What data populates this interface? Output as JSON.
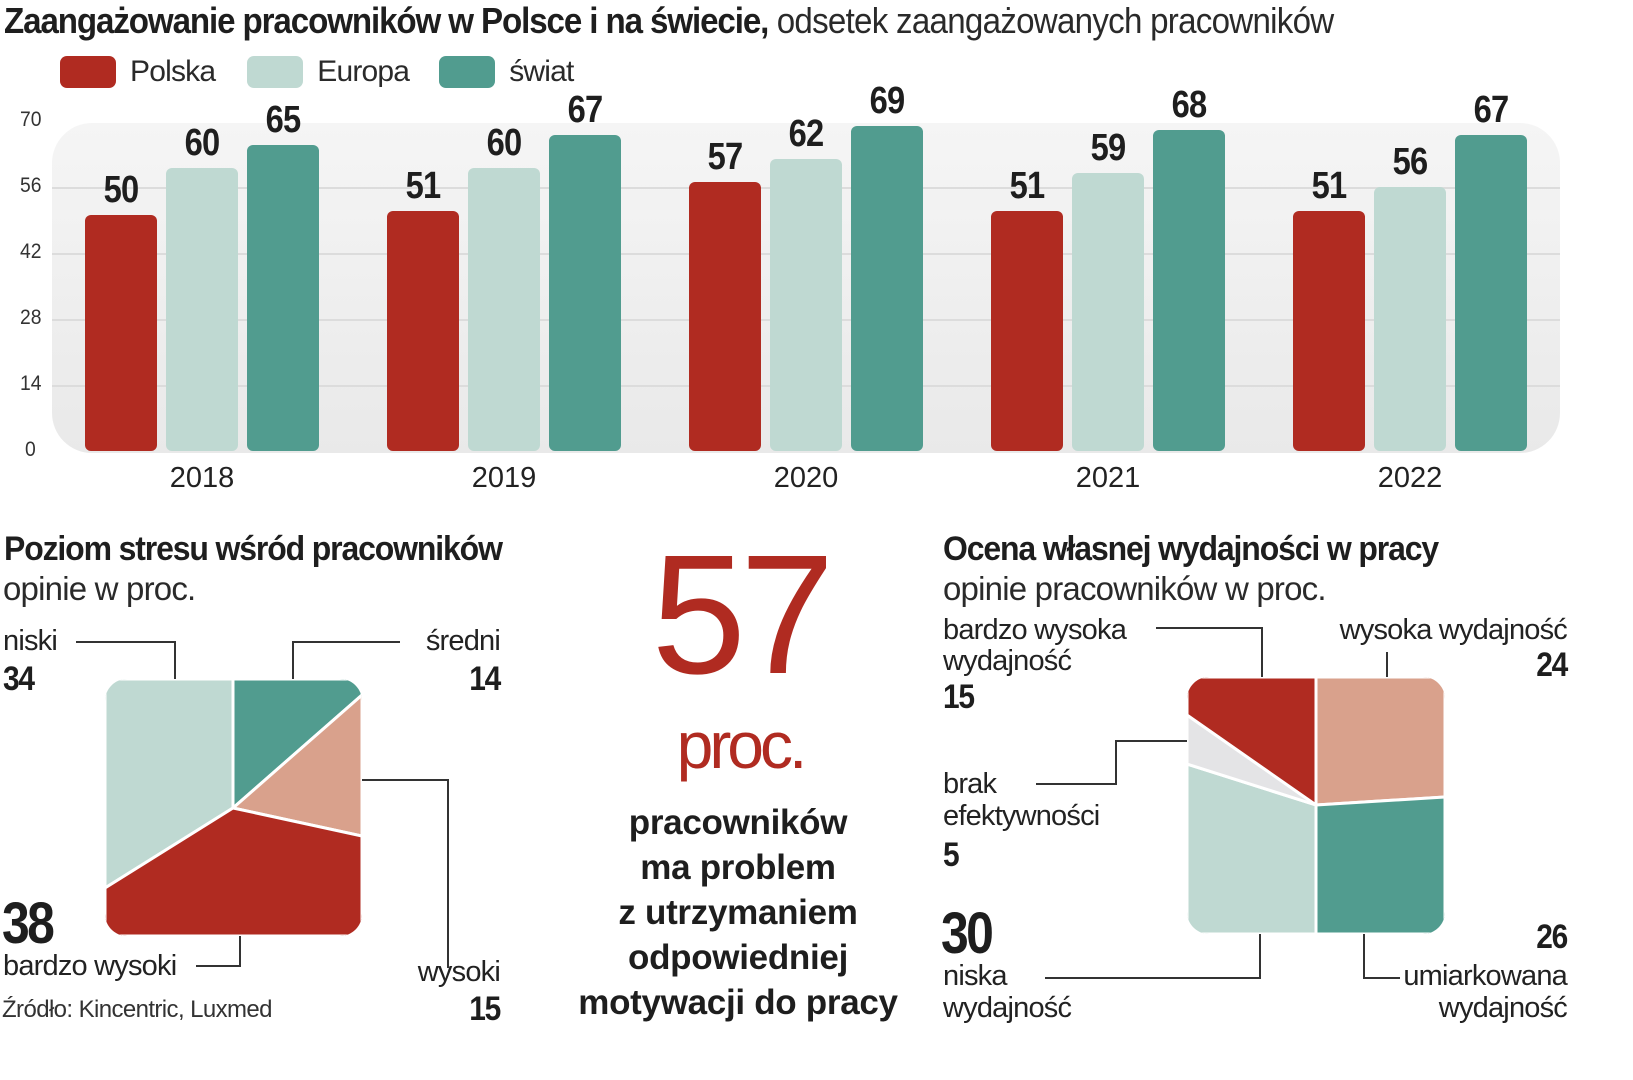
{
  "header": {
    "title_bold": "Zaangażowanie pracowników w Polsce i na świecie,",
    "title_light": " odsetek zaangażowanych pracowników"
  },
  "colors": {
    "polska": "#b02b21",
    "europa": "#bfd9d2",
    "swiat": "#519c8f",
    "salmon": "#d9a18c",
    "lightgray": "#e4e4e6",
    "plot_bg": "#efefef"
  },
  "chart_data": [
    {
      "type": "bar",
      "title": "Zaangażowanie pracowników w Polsce i na świecie, odsetek zaangażowanych pracowników",
      "xlabel": "",
      "ylabel": "",
      "categories": [
        "2018",
        "2019",
        "2020",
        "2021",
        "2022"
      ],
      "series": [
        {
          "name": "Polska",
          "values": [
            50,
            51,
            57,
            51,
            51
          ]
        },
        {
          "name": "Europa",
          "values": [
            60,
            60,
            62,
            59,
            56
          ]
        },
        {
          "name": "świat",
          "values": [
            65,
            67,
            69,
            68,
            67
          ]
        }
      ],
      "ylim": [
        0,
        70
      ],
      "yticks": [
        0,
        14,
        28,
        42,
        56,
        70
      ],
      "grid": true,
      "legend": "top-left"
    },
    {
      "type": "pie",
      "title": "Poziom stresu wśród pracowników",
      "subtitle": "opinie w proc.",
      "slices": [
        {
          "label": "średni",
          "value": 14
        },
        {
          "label": "wysoki",
          "value": 15
        },
        {
          "label": "bardzo wysoki",
          "value": 38
        },
        {
          "label": "niski",
          "value": 34
        }
      ]
    },
    {
      "type": "pie",
      "title": "Ocena własnej wydajności w pracy",
      "subtitle": "opinie pracowników w proc.",
      "slices": [
        {
          "label": "wysoka wydajność",
          "value": 24
        },
        {
          "label": "umiarkowana wydajność",
          "value": 26
        },
        {
          "label": "niska wydajność",
          "value": 30
        },
        {
          "label": "brak efektywności",
          "value": 5
        },
        {
          "label": "bardzo wysoka wydajność",
          "value": 15
        }
      ]
    }
  ],
  "legend": [
    {
      "label": "Polska"
    },
    {
      "label": "Europa"
    },
    {
      "label": "świat"
    }
  ],
  "stress": {
    "title": "Poziom stresu wśród pracowników",
    "subtitle": "opinie w proc.",
    "niski_label": "niski",
    "niski_value": "34",
    "sredni_label": "średni",
    "sredni_value": "14",
    "wysoki_label": "wysoki",
    "wysoki_value": "15",
    "bwysoki_label": "bardzo wysoki",
    "bwysoki_value": "38"
  },
  "highlight": {
    "number": "57",
    "unit": "proc.",
    "lines": [
      "pracowników",
      "ma problem",
      "z utrzymaniem",
      "odpowiedniej",
      "motywacji do pracy"
    ]
  },
  "performance": {
    "title": "Ocena własnej wydajności w pracy",
    "subtitle": "opinie pracowników w proc.",
    "bw_label1": "bardzo wysoka",
    "bw_label2": "wydajność",
    "bw_value": "15",
    "w_label": "wysoka wydajność",
    "w_value": "24",
    "brak_label1": "brak",
    "brak_label2": "efektywności",
    "brak_value": "5",
    "n_value": "30",
    "n_label1": "niska",
    "n_label2": "wydajność",
    "u_value": "26",
    "u_label1": "umiarkowana",
    "u_label2": "wydajność"
  },
  "source": "Źródło: Kincentric, Luxmed"
}
